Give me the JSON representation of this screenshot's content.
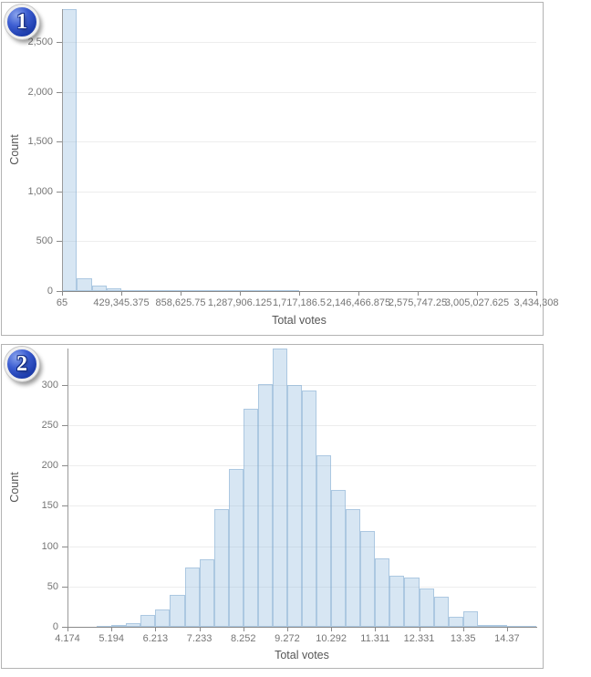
{
  "colors": {
    "bar_fill": "rgba(146,188,222,0.37)",
    "bar_stroke": "rgba(120,165,205,0.45)",
    "badge_blue": "#2a4fc4",
    "gridline": "#ededed",
    "axis_line": "#8a8a8a",
    "tick_label_text": "#757575",
    "axis_title_text": "#565656",
    "panel_border": "#b3b3b3"
  },
  "chart_data": [
    {
      "id": "raw-total-votes-histogram",
      "badge": "1",
      "type": "bar",
      "title": "",
      "xlabel": "Total votes",
      "ylabel": "Count",
      "grid": true,
      "legend": "none",
      "xlim": [
        65,
        3434308
      ],
      "ylim": [
        0,
        2830
      ],
      "bin_start": 65,
      "bin_width": 107320.09,
      "ticks_every_bins": 4,
      "x_tick_labels": [
        "65",
        "429,345.375",
        "858,625.75",
        "1,287,906.125",
        "1,717,186.5",
        "2,146,466.875",
        "2,575,747.25",
        "3,005,027.625",
        "3,434,308"
      ],
      "y_tick_values": [
        0,
        500,
        1000,
        1500,
        2000,
        2500
      ],
      "y_tick_labels": [
        "0",
        "500",
        "1,000",
        "1,500",
        "2,000",
        "2,500"
      ],
      "values": [
        2830,
        128,
        55,
        26,
        12,
        6,
        10,
        4,
        3,
        2,
        2,
        2,
        1,
        1,
        1,
        1,
        0,
        0,
        0,
        0,
        0,
        0,
        0,
        0,
        0,
        0,
        0,
        0,
        0,
        0,
        0,
        0
      ]
    },
    {
      "id": "log-total-votes-histogram",
      "badge": "2",
      "type": "bar",
      "title": "",
      "xlabel": "Total votes",
      "ylabel": "Count",
      "grid": true,
      "legend": "none",
      "xlim": [
        4.174,
        15.053
      ],
      "ylim": [
        0,
        345
      ],
      "bin_start": 4.174,
      "bin_width": 0.3399,
      "ticks_every_bins": 3,
      "x_tick_labels": [
        "4.174",
        "5.194",
        "6.213",
        "7.233",
        "8.252",
        "9.272",
        "10.292",
        "11.311",
        "12.331",
        "13.35",
        "14.37"
      ],
      "y_tick_values": [
        0,
        50,
        100,
        150,
        200,
        250,
        300
      ],
      "y_tick_labels": [
        "0",
        "50",
        "100",
        "150",
        "200",
        "250",
        "300"
      ],
      "values": [
        0,
        0,
        1,
        2,
        4,
        15,
        22,
        40,
        73,
        84,
        146,
        196,
        270,
        301,
        345,
        300,
        293,
        213,
        170,
        146,
        119,
        85,
        63,
        61,
        48,
        37,
        12,
        19,
        2,
        2,
        1,
        1
      ]
    }
  ]
}
